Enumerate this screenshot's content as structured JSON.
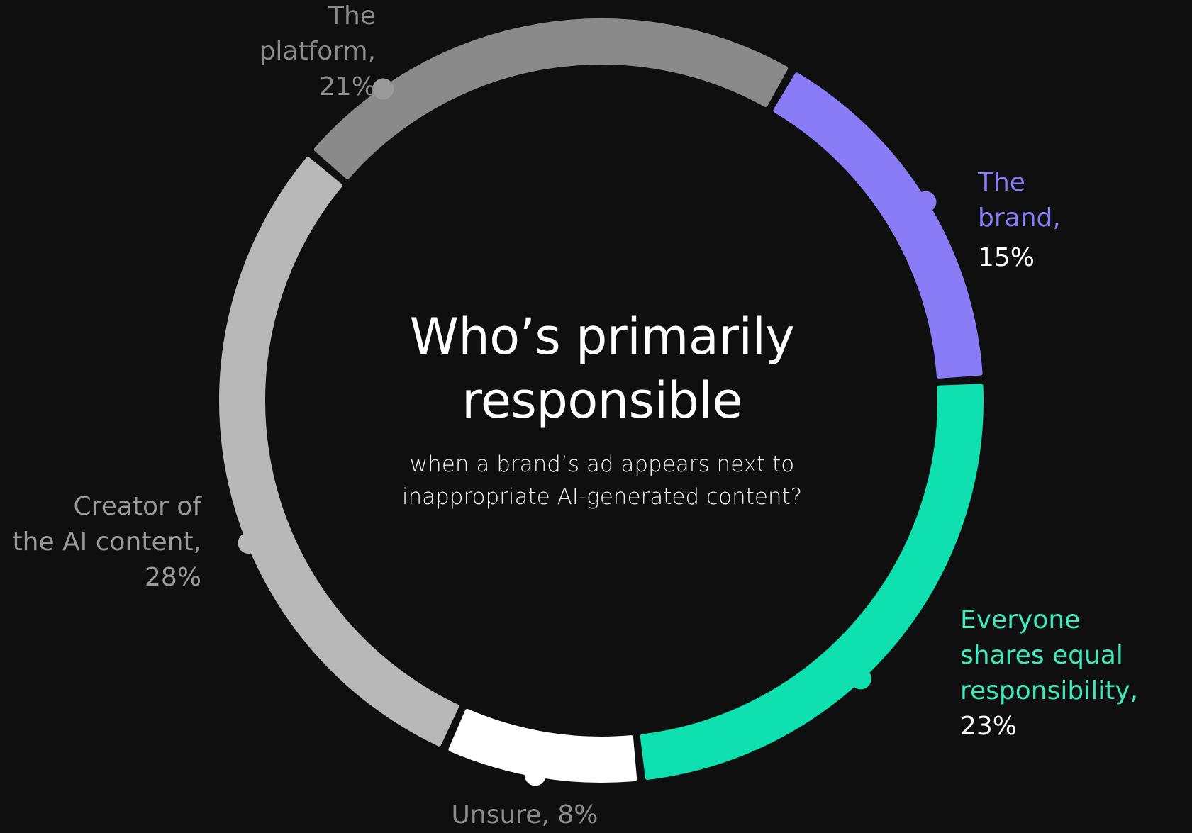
{
  "chart_data": {
    "type": "donut",
    "title": "Who’s primarily responsible",
    "subtitle": "when a brand’s ad appears next to inappropriate AI-generated content?",
    "slices": [
      {
        "name": "The brand",
        "label_lines": [
          "The",
          "brand,"
        ],
        "pct_label": "15%",
        "value": 15,
        "color": "#8a7cf7",
        "label_color": "#8a7cf7",
        "pct_color": "#ffffff"
      },
      {
        "name": "Everyone shares equal responsibility",
        "label_lines": [
          "Everyone",
          "shares equal",
          "responsibility,"
        ],
        "pct_label": "23%",
        "value": 23,
        "color": "#0fe0b0",
        "label_color": "#3fe8bd",
        "pct_color": "#ffffff"
      },
      {
        "name": "Unsure",
        "label_lines": [
          "Unsure, 8%"
        ],
        "pct_label": "",
        "value": 8,
        "color": "#ffffff",
        "label_color": "#8c8c8c",
        "pct_color": "#8c8c8c"
      },
      {
        "name": "Creator of the AI content",
        "label_lines": [
          "Creator of",
          "the AI content,"
        ],
        "pct_label": "28%",
        "value": 28,
        "color": "#b8b8b8",
        "label_color": "#9a9a9a",
        "pct_color": "#9a9a9a"
      },
      {
        "name": "The platform",
        "label_lines": [
          "The",
          "platform,"
        ],
        "pct_label": "21%",
        "value": 21,
        "color": "#8a8a8a",
        "label_color": "#8c8c8c",
        "pct_color": "#8c8c8c"
      }
    ]
  }
}
